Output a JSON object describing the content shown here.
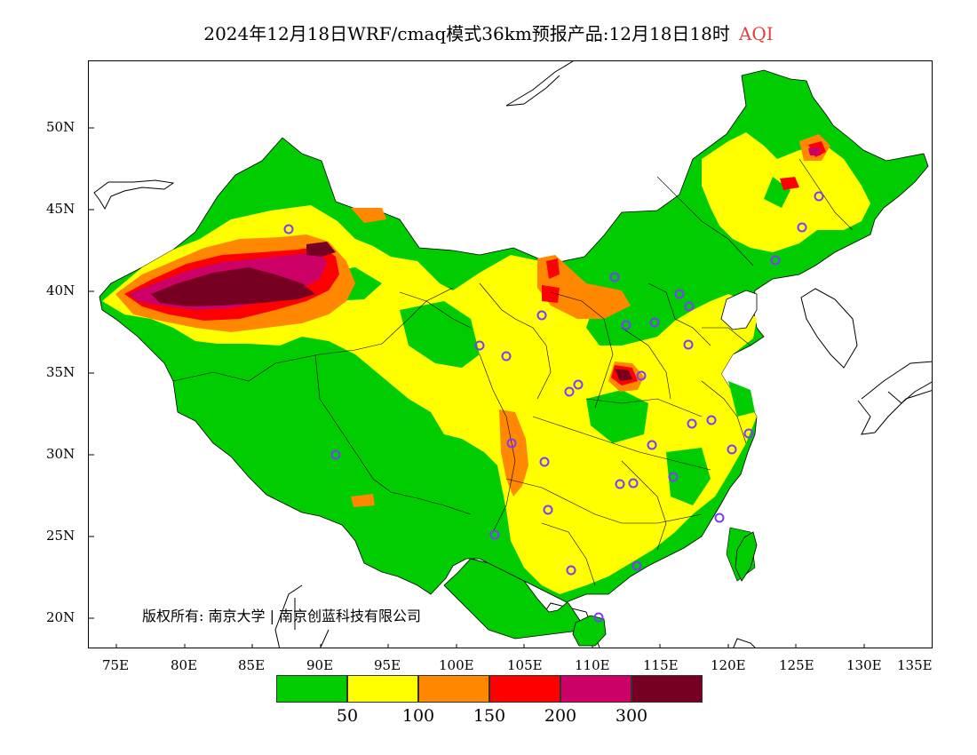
{
  "title": {
    "main": "2024年12月18日WRF/cmaq模式36km预报产品:12月18日18时",
    "variable": "AQI",
    "variable_color": "#e04040"
  },
  "axes": {
    "y_labels": [
      "50N",
      "45N",
      "40N",
      "35N",
      "30N",
      "25N",
      "20N"
    ],
    "x_labels": [
      "75E",
      "80E",
      "85E",
      "90E",
      "95E",
      "100E",
      "105E",
      "110E",
      "115E",
      "120E",
      "125E",
      "130E",
      "135E"
    ]
  },
  "copyright": "版权所有: 南京大学 | 南京创蓝科技有限公司",
  "legend": {
    "colors": [
      "#00cc00",
      "#ffff00",
      "#ff8800",
      "#ff0000",
      "#cc0066",
      "#770022"
    ],
    "ticks": [
      "50",
      "100",
      "150",
      "200",
      "300"
    ]
  },
  "colors": {
    "good": "#00cc00",
    "moderate": "#ffff00",
    "usg": "#ff8800",
    "unhealthy": "#ff0000",
    "very_unhealthy": "#cc0066",
    "hazardous": "#770022",
    "station_marker": "#7a3cff"
  }
}
